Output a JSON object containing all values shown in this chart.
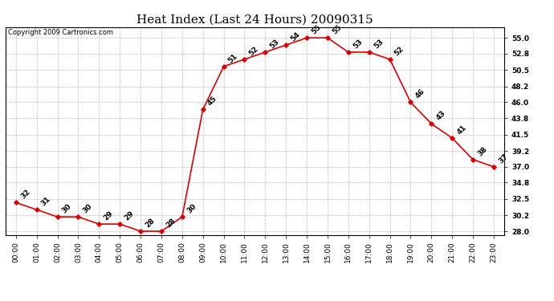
{
  "title": "Heat Index (Last 24 Hours) 20090315",
  "copyright": "Copyright 2009 Cartronics.com",
  "hours": [
    0,
    1,
    2,
    3,
    4,
    5,
    6,
    7,
    8,
    9,
    10,
    11,
    12,
    13,
    14,
    15,
    16,
    17,
    18,
    19,
    20,
    21,
    22,
    23
  ],
  "values": [
    32,
    31,
    30,
    30,
    29,
    29,
    28,
    28,
    30,
    45,
    51,
    52,
    53,
    54,
    55,
    55,
    53,
    53,
    52,
    46,
    43,
    41,
    38,
    37
  ],
  "xlabels": [
    "00:00",
    "01:00",
    "02:00",
    "03:00",
    "04:00",
    "05:00",
    "06:00",
    "07:00",
    "08:00",
    "09:00",
    "10:00",
    "11:00",
    "12:00",
    "13:00",
    "14:00",
    "15:00",
    "16:00",
    "17:00",
    "18:00",
    "19:00",
    "20:00",
    "21:00",
    "22:00",
    "23:00"
  ],
  "ylim": [
    27.5,
    56.5
  ],
  "yticks": [
    28.0,
    30.2,
    32.5,
    34.8,
    37.0,
    39.2,
    41.5,
    43.8,
    46.0,
    48.2,
    50.5,
    52.8,
    55.0
  ],
  "line_color": "#dd0000",
  "marker_color": "#dd0000",
  "bg_color": "#ffffff",
  "grid_color": "#bbbbbb",
  "title_fontsize": 11,
  "label_fontsize": 6.5,
  "tick_fontsize": 6.5,
  "copyright_fontsize": 6.0
}
